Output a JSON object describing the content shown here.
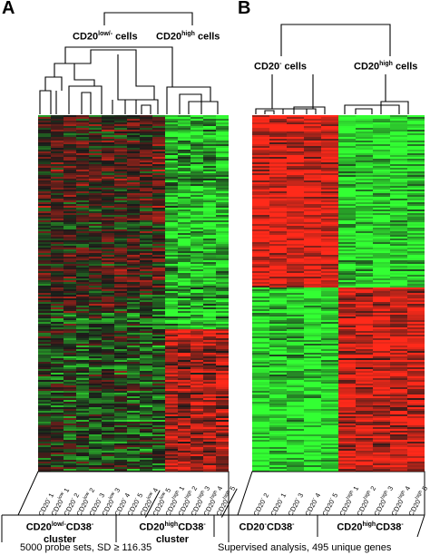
{
  "panel_a": {
    "letter": "A",
    "group_low": {
      "base": "CD20",
      "sup": "low/-",
      "rest": " cells"
    },
    "group_high": {
      "base": "CD20",
      "sup": "high",
      "rest": " cells"
    },
    "columns": [
      {
        "base": "CD20",
        "sup": "-",
        "num": "1"
      },
      {
        "base": "CD20",
        "sup": "low",
        "num": "1"
      },
      {
        "base": "CD20",
        "sup": "-",
        "num": "2"
      },
      {
        "base": "CD20",
        "sup": "low",
        "num": "2"
      },
      {
        "base": "CD20",
        "sup": "-",
        "num": "3"
      },
      {
        "base": "CD20",
        "sup": "low",
        "num": "3"
      },
      {
        "base": "CD20",
        "sup": "-",
        "num": "4"
      },
      {
        "base": "CD20",
        "sup": "-",
        "num": "5"
      },
      {
        "base": "CD20",
        "sup": "low",
        "num": "4",
        "underline": true
      },
      {
        "base": "CD20",
        "sup": "low",
        "num": "5"
      },
      {
        "base": "CD20",
        "sup": "high",
        "num": "1"
      },
      {
        "base": "CD20",
        "sup": "high",
        "num": "2"
      },
      {
        "base": "CD20",
        "sup": "high",
        "num": "3"
      },
      {
        "base": "CD20",
        "sup": "high",
        "num": "4"
      },
      {
        "base": "CD20",
        "sup": "high",
        "num": "5",
        "underline": true
      }
    ],
    "cluster_low": {
      "line1_base": "CD20",
      "line1_sup": "low/-",
      "line1_rest": "CD38",
      "line1_sup2": "-",
      "line2": "cluster"
    },
    "cluster_high": {
      "line1_base": "CD20",
      "line1_sup": "high",
      "line1_rest": "CD38",
      "line1_sup2": "-",
      "line2": "cluster"
    },
    "footer": "5000 probe sets, SD ≥ 116.35"
  },
  "panel_b": {
    "letter": "B",
    "group_low": {
      "base": "CD20",
      "sup": "-",
      "rest": " cells"
    },
    "group_high": {
      "base": "CD20",
      "sup": "high",
      "rest": " cells"
    },
    "columns": [
      {
        "base": "CD20",
        "sup": "-",
        "num": "2"
      },
      {
        "base": "CD20",
        "sup": "-",
        "num": "1"
      },
      {
        "base": "CD20",
        "sup": "-",
        "num": "3"
      },
      {
        "base": "CD20",
        "sup": "-",
        "num": "4"
      },
      {
        "base": "CD20",
        "sup": "-",
        "num": "5"
      },
      {
        "base": "CD20",
        "sup": "high",
        "num": "1"
      },
      {
        "base": "CD20",
        "sup": "high",
        "num": "2"
      },
      {
        "base": "CD20",
        "sup": "high",
        "num": "3"
      },
      {
        "base": "CD20",
        "sup": "high",
        "num": "4"
      },
      {
        "base": "CD20",
        "sup": "high",
        "num": "5"
      }
    ],
    "cluster_low": {
      "line1_base": "CD20",
      "line1_sup": "-",
      "line1_rest": "CD38",
      "line1_sup2": "-"
    },
    "cluster_high": {
      "line1_base": "CD20",
      "line1_sup": "high",
      "line1_rest": "CD38",
      "line1_sup2": "-"
    },
    "footer": "Supervised analysis, 495 unique genes"
  },
  "colors": {
    "up": "#ff2a1a",
    "down": "#33ff33",
    "mid": "#1a1a1a"
  }
}
